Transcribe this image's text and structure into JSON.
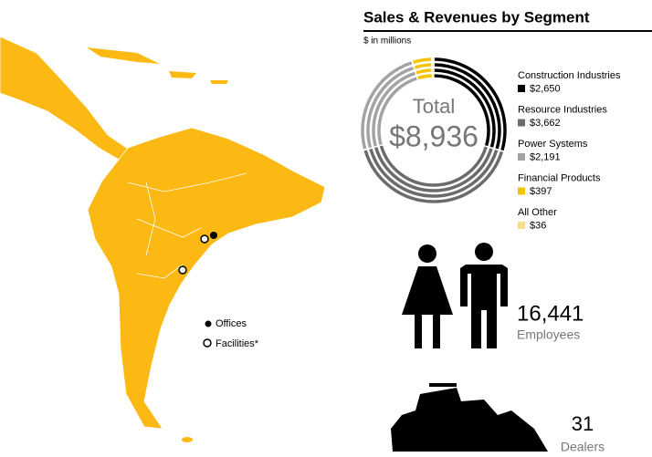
{
  "map": {
    "legend": [
      "Offices",
      "Facilities*"
    ]
  },
  "chart_data": {
    "type": "pie",
    "title": "Sales & Revenues by Segment",
    "subtitle": "$ in millions",
    "center_label": "Total",
    "center_value": "$8,936",
    "categories": [
      "Construction Industries",
      "Resource Industries",
      "Power Systems",
      "Financial Products",
      "All Other"
    ],
    "values": [
      2650,
      3662,
      2191,
      397,
      36
    ],
    "value_labels": [
      "$2,650",
      "$3,662",
      "$2,191",
      "$397",
      "$36"
    ],
    "colors": [
      "#000000",
      "#6b6b6b",
      "#a3a3a3",
      "#f5c400",
      "#f6dc8c"
    ]
  },
  "stats": [
    {
      "value": "16,441",
      "label": "Employees"
    },
    {
      "value": "31",
      "label": "Dealers"
    }
  ]
}
